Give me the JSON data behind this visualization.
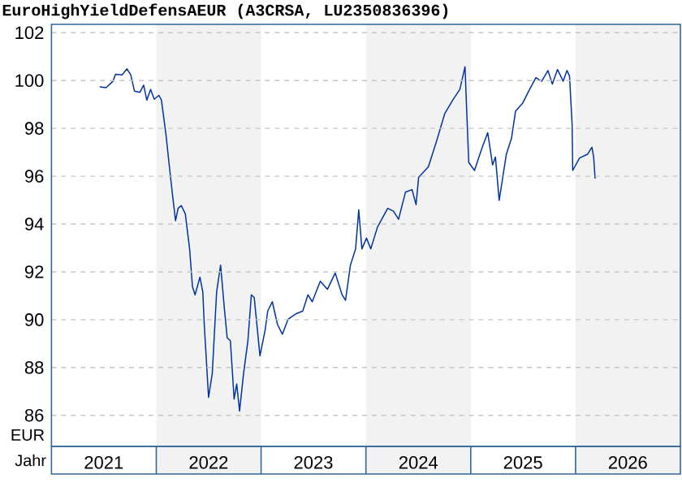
{
  "chart_data": {
    "type": "line",
    "title": "EuroHighYieldDefensAEUR (A3CRSA, LU2350836396)",
    "xlabel": "Jahr",
    "ylabel": "EUR",
    "xlim": [
      "2021-01-01",
      "2027-01-01"
    ],
    "ylim": [
      84.7,
      102.35
    ],
    "xticks": [
      {
        "value": "2021-07-02",
        "label": "2021"
      },
      {
        "value": "2022-07-02",
        "label": "2022"
      },
      {
        "value": "2023-07-02",
        "label": "2023"
      },
      {
        "value": "2024-07-02",
        "label": "2024"
      },
      {
        "value": "2025-07-02",
        "label": "2025"
      },
      {
        "value": "2026-07-02",
        "label": "2026"
      }
    ],
    "yticks": [
      86,
      88,
      90,
      92,
      94,
      96,
      98,
      100,
      102
    ],
    "grid": "y",
    "bands": [
      {
        "axis": "x",
        "from": "2022-01-01",
        "to": "2023-01-01",
        "color": "#f2f2f2"
      },
      {
        "axis": "x",
        "from": "2024-01-01",
        "to": "2025-01-01",
        "color": "#f2f2f2"
      },
      {
        "axis": "x",
        "from": "2026-01-01",
        "to": "2027-01-01",
        "color": "#f2f2f2"
      }
    ],
    "series": [
      {
        "color": "#0033a0",
        "x": [
          "2021-06-18",
          "2021-07-10",
          "2021-08-03",
          "2021-08-12",
          "2021-09-04",
          "2021-09-21",
          "2021-10-04",
          "2021-10-17",
          "2021-11-05",
          "2021-11-18",
          "2021-11-29",
          "2021-12-12",
          "2021-12-25",
          "2022-01-10",
          "2022-01-19",
          "2022-02-04",
          "2022-02-14",
          "2022-02-26",
          "2022-03-09",
          "2022-03-18",
          "2022-03-29",
          "2022-04-12",
          "2022-04-27",
          "2022-05-07",
          "2022-05-16",
          "2022-06-02",
          "2022-06-12",
          "2022-06-17",
          "2022-07-02",
          "2022-07-15",
          "2022-07-30",
          "2022-08-13",
          "2022-08-26",
          "2022-09-05",
          "2022-09-16",
          "2022-09-29",
          "2022-10-08",
          "2022-10-18",
          "2022-11-01",
          "2022-11-16",
          "2022-11-28",
          "2022-12-08",
          "2022-12-28",
          "2023-01-15",
          "2023-01-24",
          "2023-02-09",
          "2023-02-27",
          "2023-03-16",
          "2023-04-05",
          "2023-05-03",
          "2023-05-26",
          "2023-06-13",
          "2023-06-28",
          "2023-07-26",
          "2023-08-20",
          "2023-09-16",
          "2023-10-10",
          "2023-10-22",
          "2023-11-08",
          "2023-11-26",
          "2023-12-07",
          "2023-12-18",
          "2024-01-03",
          "2024-01-18",
          "2024-02-10",
          "2024-03-17",
          "2024-04-06",
          "2024-04-24",
          "2024-05-18",
          "2024-06-10",
          "2024-06-24",
          "2024-07-03",
          "2024-08-06",
          "2024-09-04",
          "2024-10-02",
          "2024-10-30",
          "2024-11-24",
          "2024-12-12",
          "2024-12-19",
          "2024-12-25",
          "2025-01-14",
          "2025-02-08",
          "2025-03-01",
          "2025-03-18",
          "2025-03-28",
          "2025-04-10",
          "2025-05-05",
          "2025-05-23",
          "2025-06-06",
          "2025-07-01",
          "2025-07-25",
          "2025-08-16",
          "2025-09-05",
          "2025-09-27",
          "2025-10-12",
          "2025-10-30",
          "2025-11-19",
          "2025-12-02",
          "2025-12-11",
          "2025-12-20",
          "2025-12-22",
          "2026-01-15",
          "2026-02-12",
          "2026-02-27",
          "2026-03-05",
          "2026-03-10"
        ],
        "values": [
          99.74,
          99.7,
          99.97,
          100.26,
          100.24,
          100.49,
          100.24,
          99.56,
          99.51,
          99.81,
          99.18,
          99.63,
          99.22,
          99.38,
          99.18,
          97.71,
          96.58,
          95.27,
          94.14,
          94.66,
          94.77,
          94.43,
          92.96,
          91.38,
          91.04,
          91.78,
          91.15,
          89.8,
          86.75,
          87.76,
          91.15,
          92.28,
          90.47,
          89.24,
          89.12,
          86.68,
          87.31,
          86.18,
          87.76,
          89.12,
          91.04,
          90.93,
          88.49,
          89.57,
          90.36,
          90.75,
          89.8,
          89.39,
          90.02,
          90.25,
          90.36,
          91.04,
          90.75,
          91.61,
          91.27,
          91.95,
          91.04,
          90.81,
          92.28,
          92.96,
          94.59,
          92.96,
          93.41,
          92.96,
          93.86,
          94.66,
          94.54,
          94.2,
          95.33,
          95.44,
          94.81,
          95.95,
          96.39,
          97.48,
          98.61,
          99.18,
          99.63,
          100.58,
          98.39,
          96.58,
          96.24,
          97.14,
          97.82,
          96.47,
          96.8,
          94.99,
          96.92,
          97.59,
          98.72,
          99.06,
          99.63,
          100.12,
          99.97,
          100.42,
          99.85,
          100.46,
          99.97,
          100.42,
          100.19,
          98.16,
          96.24,
          96.76,
          96.92,
          97.21,
          96.8,
          95.9
        ]
      }
    ]
  }
}
